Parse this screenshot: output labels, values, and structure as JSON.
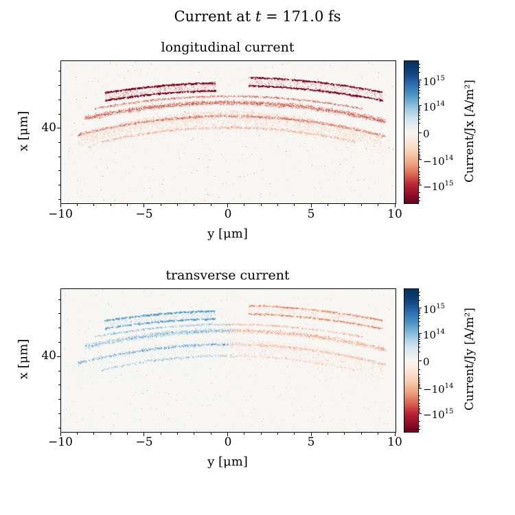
{
  "figure": {
    "suptitle_prefix": "Current at ",
    "suptitle_var": "t",
    "suptitle_suffix": " = 171.0 fs"
  },
  "panels": [
    {
      "title": "longitudinal current",
      "xlabel": "y [μm]",
      "ylabel": "x [μm]",
      "ytick": "40",
      "xticks": [
        "−10",
        "−5",
        "0",
        "5",
        "10"
      ],
      "colorbar_label": "Current/Jx [A/m²]",
      "colorbar_ticks": [
        {
          "base": "10",
          "exp": "15"
        },
        {
          "base": "10",
          "exp": "14"
        },
        {
          "base": "0",
          "exp": ""
        },
        {
          "base": "−10",
          "exp": "14"
        },
        {
          "base": "−10",
          "exp": "15"
        }
      ]
    },
    {
      "title": "transverse current",
      "xlabel": "y [μm]",
      "ylabel": "x [μm]",
      "ytick": "40",
      "xticks": [
        "−10",
        "−5",
        "0",
        "5",
        "10"
      ],
      "colorbar_label": "Current/Jy [A/m²]",
      "colorbar_ticks": [
        {
          "base": "10",
          "exp": "15"
        },
        {
          "base": "10",
          "exp": "14"
        },
        {
          "base": "0",
          "exp": ""
        },
        {
          "base": "−10",
          "exp": "14"
        },
        {
          "base": "−10",
          "exp": "15"
        }
      ]
    }
  ],
  "palettes": {
    "darkred": [
      "#67001f",
      "#96112a",
      "#b2182b",
      "#cf5246"
    ],
    "red": [
      "#b2182b",
      "#c94a41",
      "#d6604d",
      "#e88a68"
    ],
    "lightred": [
      "#d6604d",
      "#ec9070",
      "#f4a582",
      "#f9c3a2"
    ],
    "faintred": [
      "#f4a582",
      "#fddbc7",
      "#f3b793"
    ],
    "softred": [
      "#e0755a",
      "#f4a582",
      "#fbcaa9",
      "#f2997a"
    ],
    "bluedark": [
      "#2166ac",
      "#3a84ba",
      "#4393c3"
    ],
    "blue": [
      "#4393c3",
      "#6faccf",
      "#92c5de",
      "#529bc7"
    ],
    "bluelight": [
      "#92c5de",
      "#c0dcea",
      "#d1e5f0"
    ]
  },
  "chart_data": [
    {
      "type": "scatter",
      "title": "longitudinal current",
      "xlabel": "y [μm]",
      "ylabel": "x [μm]",
      "xlim": [
        -10,
        10
      ],
      "xticks": [
        -10,
        -5,
        0,
        5,
        10
      ],
      "ytick_labels": [
        40
      ],
      "colorbar": {
        "label": "Current/Jx [A/m²]",
        "scale": "symlog",
        "cmap": "RdBu",
        "ticks_values": [
          1000000000000000.0,
          100000000000000.0,
          0,
          -100000000000000.0,
          -1000000000000000.0
        ]
      },
      "description": "Mostly negative (red) current density; arc-shaped particle filaments curving downward toward both edges, dense dark-red looped bunches in the upper region, diffuse light-red scatter below",
      "bands": [
        {
          "style": "loop",
          "u0": 0.13,
          "u1": 0.46,
          "v0": 0.15,
          "curv": 0.5,
          "gap": 0.055,
          "n": 1400,
          "palette": "darkred"
        },
        {
          "style": "loop",
          "u0": 0.56,
          "u1": 0.96,
          "v0": 0.11,
          "curv": 0.5,
          "gap": 0.058,
          "n": 1400,
          "palette": "darkred"
        },
        {
          "style": "line",
          "u0": 0.1,
          "u1": 0.9,
          "v0": 0.245,
          "curv": 0.55,
          "th": 0.012,
          "n": 900,
          "palette": "red"
        },
        {
          "style": "line",
          "u0": 0.07,
          "u1": 0.97,
          "v0": 0.29,
          "curv": 0.6,
          "th": 0.028,
          "n": 2700,
          "palette": "red"
        },
        {
          "style": "line",
          "u0": 0.05,
          "u1": 0.97,
          "v0": 0.385,
          "curv": 0.65,
          "th": 0.016,
          "n": 1500,
          "palette": "red"
        },
        {
          "style": "line",
          "u0": 0.12,
          "u1": 0.88,
          "v0": 0.465,
          "curv": 0.7,
          "th": 0.016,
          "n": 750,
          "palette": "lightred"
        },
        {
          "style": "cloud",
          "u0": 0.05,
          "u1": 0.96,
          "v0": 0.33,
          "curv": 0.8,
          "spread": 0.22,
          "n": 2600,
          "palette": "lightred"
        },
        {
          "style": "noise",
          "n": 450,
          "palette": "faintred"
        },
        {
          "style": "noise",
          "n": 160,
          "palette": "red"
        }
      ]
    },
    {
      "type": "scatter",
      "title": "transverse current",
      "xlabel": "y [μm]",
      "ylabel": "x [μm]",
      "xlim": [
        -10,
        10
      ],
      "xticks": [
        -10,
        -5,
        0,
        5,
        10
      ],
      "ytick_labels": [
        40
      ],
      "colorbar": {
        "label": "Current/Jy [A/m²]",
        "scale": "symlog",
        "cmap": "RdBu",
        "ticks_values": [
          1000000000000000.0,
          100000000000000.0,
          0,
          -100000000000000.0,
          -1000000000000000.0
        ]
      },
      "description": "Antisymmetric transverse current: positive (blue) points on the left half (y<0), negative (light red/orange) points on the right half (y>0), same arc-shaped filament geometry as longitudinal panel but fainter",
      "bands": [
        {
          "style": "loop",
          "u0": 0.13,
          "u1": 0.46,
          "v0": 0.15,
          "curv": 0.5,
          "gap": 0.055,
          "n": 950,
          "paletteL": "blue",
          "paletteR": "softred"
        },
        {
          "style": "loop",
          "u0": 0.56,
          "u1": 0.96,
          "v0": 0.11,
          "curv": 0.5,
          "gap": 0.058,
          "n": 950,
          "paletteL": "blue",
          "paletteR": "softred"
        },
        {
          "style": "line",
          "u0": 0.1,
          "u1": 0.9,
          "v0": 0.245,
          "curv": 0.55,
          "th": 0.012,
          "n": 650,
          "paletteL": "blue",
          "paletteR": "softred"
        },
        {
          "style": "line",
          "u0": 0.07,
          "u1": 0.97,
          "v0": 0.29,
          "curv": 0.6,
          "th": 0.028,
          "n": 1900,
          "paletteL": "blue",
          "paletteR": "softred"
        },
        {
          "style": "line",
          "u0": 0.05,
          "u1": 0.97,
          "v0": 0.385,
          "curv": 0.65,
          "th": 0.016,
          "n": 1050,
          "paletteL": "bluedark",
          "paletteR": "softred"
        },
        {
          "style": "line",
          "u0": 0.12,
          "u1": 0.88,
          "v0": 0.465,
          "curv": 0.7,
          "th": 0.016,
          "n": 520,
          "paletteL": "blue",
          "paletteR": "faintred"
        },
        {
          "style": "cloud",
          "u0": 0.05,
          "u1": 0.96,
          "v0": 0.33,
          "curv": 0.8,
          "spread": 0.22,
          "n": 1700,
          "paletteL": "bluelight",
          "paletteR": "faintred"
        },
        {
          "style": "noise",
          "n": 320,
          "paletteL": "bluelight",
          "paletteR": "faintred"
        },
        {
          "style": "noise",
          "n": 200,
          "paletteL": "blue",
          "paletteR": "softred"
        }
      ]
    }
  ]
}
